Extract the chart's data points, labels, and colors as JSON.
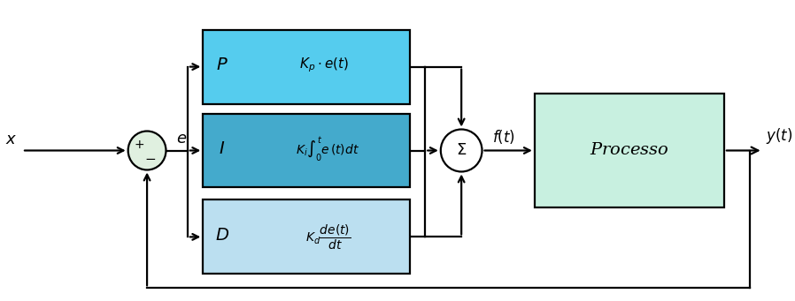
{
  "fig_width": 8.98,
  "fig_height": 3.41,
  "dpi": 100,
  "bg_color": "#ffffff",
  "box_P_color": "#55ccee",
  "box_I_color": "#44aacc",
  "box_D_color": "#bbdff0",
  "box_processo_color": "#c8f0e0",
  "circle_color": "#e0f0e0",
  "line_color": "#000000",
  "text_color": "#000000",
  "summing_circle_color": "#ffffff",
  "label_x": "$x$",
  "label_e": "$e$",
  "label_ft": "$f(t)$",
  "label_yt": "$y(t)$",
  "label_processo": "$Processo$",
  "label_P": "$P$",
  "label_I": "$I$",
  "label_D": "$D$",
  "label_Kp": "$K_p \\cdot e(t)$",
  "label_Ki": "$K_i\\int_0^{t} e\\,(t)dt$",
  "label_Kd": "$K_d\\dfrac{de(t)}{dt}$",
  "label_sigma": "$\\Sigma$"
}
